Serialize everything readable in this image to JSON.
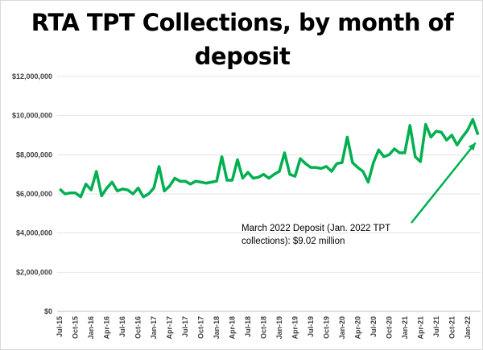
{
  "chart_data": {
    "type": "line",
    "title_lines": [
      "RTA TPT Collections, by month of",
      "deposit"
    ],
    "xlabel": "",
    "ylabel": "",
    "ylim": [
      0,
      12000000
    ],
    "yticks": [
      0,
      2000000,
      4000000,
      6000000,
      8000000,
      10000000,
      12000000
    ],
    "ytick_labels": [
      "$0",
      "$2,000,000",
      "$4,000,000",
      "$6,000,000",
      "$8,000,000",
      "$10,000,000",
      "$12,000,000"
    ],
    "grid": "horizontal",
    "x_tick_labels": [
      "Jul-15",
      "Oct-15",
      "Jan-16",
      "Apr-16",
      "Jul-16",
      "Oct-16",
      "Jan-17",
      "Apr-17",
      "Jul-17",
      "Oct-17",
      "Jan-18",
      "Apr-18",
      "Jul-18",
      "Oct-18",
      "Jan-19",
      "Apr-19",
      "Jul-19",
      "Oct-19",
      "Jan-20",
      "Apr-20",
      "Jul-20",
      "Oct-20",
      "Jan-21",
      "Apr-21",
      "Jul-21",
      "Oct-21",
      "Jan-22"
    ],
    "x_start": "Jul-15",
    "x_end": "Mar-22",
    "line_color": "#00b050",
    "series": [
      {
        "values": [
          6250000,
          6000000,
          6050000,
          6050000,
          5850000,
          6500000,
          6200000,
          7150000,
          5900000,
          6300000,
          6600000,
          6150000,
          6250000,
          6200000,
          6000000,
          6300000,
          5850000,
          6000000,
          6300000,
          7400000,
          6150000,
          6400000,
          6800000,
          6650000,
          6650000,
          6500000,
          6650000,
          6600000,
          6550000,
          6600000,
          6650000,
          7900000,
          6700000,
          6700000,
          7750000,
          6800000,
          7100000,
          6800000,
          6850000,
          7000000,
          6800000,
          7000000,
          7150000,
          8100000,
          7000000,
          6900000,
          7800000,
          7550000,
          7350000,
          7350000,
          7300000,
          7400000,
          7150000,
          7550000,
          7600000,
          8900000,
          7600000,
          7350000,
          7150000,
          6600000,
          7600000,
          8250000,
          7900000,
          8000000,
          8300000,
          8100000,
          8100000,
          9500000,
          7900000,
          7650000,
          9550000,
          8900000,
          9200000,
          9150000,
          8750000,
          9000000,
          8500000,
          8900000,
          9250000,
          9800000,
          9020000
        ]
      }
    ],
    "annotation": {
      "lines": [
        "March 2022 Deposit (Jan. 2022 TPT",
        "collections): $9.02 million"
      ],
      "arrow_target": "Mar-22"
    }
  }
}
